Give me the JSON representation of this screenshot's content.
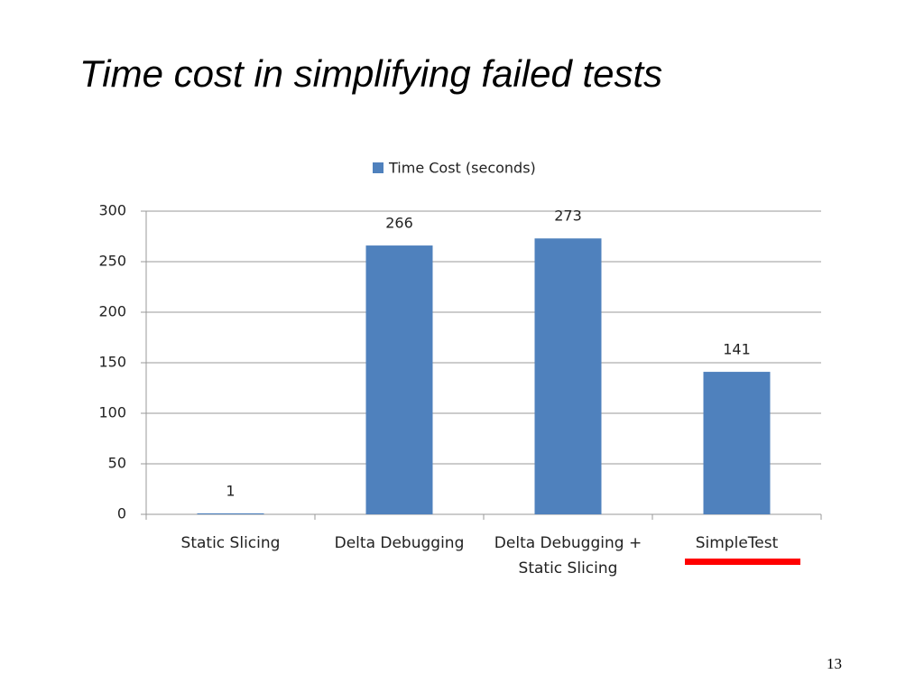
{
  "slide": {
    "title": "Time cost in simplifying failed tests",
    "page_number": "13"
  },
  "chart_data": {
    "type": "bar",
    "categories": [
      "Static Slicing",
      "Delta Debugging",
      "Delta Debugging + Static Slicing",
      "SimpleTest"
    ],
    "series": [
      {
        "name": "Time Cost (seconds)",
        "color": "#4f81bd",
        "values": [
          1,
          266,
          273,
          141
        ]
      }
    ],
    "ylim": [
      0,
      300
    ],
    "yticks": [
      0,
      50,
      100,
      150,
      200,
      250,
      300
    ],
    "grid": true,
    "legend": "top"
  }
}
